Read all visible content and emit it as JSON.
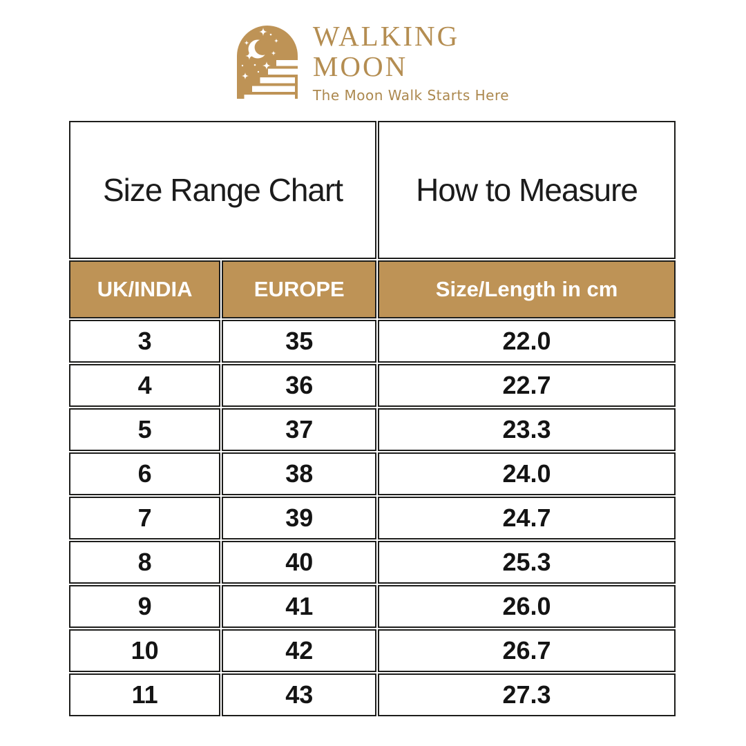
{
  "brand": {
    "name_line1": "WALKING",
    "name_line2": "MOON",
    "tagline": "The Moon Walk Starts Here",
    "logo_icon": "arch-moon-stairs-icon"
  },
  "size_chart": {
    "left_section_title": "Size Range Chart",
    "right_section_title": "How to Measure",
    "columns": [
      "UK/INDIA",
      "EUROPE",
      "Size/Length in cm"
    ],
    "rows": [
      {
        "uk_india": "3",
        "europe": "35",
        "length_cm": "22.0"
      },
      {
        "uk_india": "4",
        "europe": "36",
        "length_cm": "22.7"
      },
      {
        "uk_india": "5",
        "europe": "37",
        "length_cm": "23.3"
      },
      {
        "uk_india": "6",
        "europe": "38",
        "length_cm": "24.0"
      },
      {
        "uk_india": "7",
        "europe": "39",
        "length_cm": "24.7"
      },
      {
        "uk_india": "8",
        "europe": "40",
        "length_cm": "25.3"
      },
      {
        "uk_india": "9",
        "europe": "41",
        "length_cm": "26.0"
      },
      {
        "uk_india": "10",
        "europe": "42",
        "length_cm": "26.7"
      },
      {
        "uk_india": "11",
        "europe": "43",
        "length_cm": "27.3"
      }
    ]
  },
  "colors": {
    "gold": "#BE9356",
    "brand_gold": "#B48D51",
    "tagline_gold": "#AC884E",
    "border": "#1D1D1B",
    "text": "#141414",
    "header_text_on_gold": "#FFFFFF",
    "background": "#FFFFFF"
  }
}
